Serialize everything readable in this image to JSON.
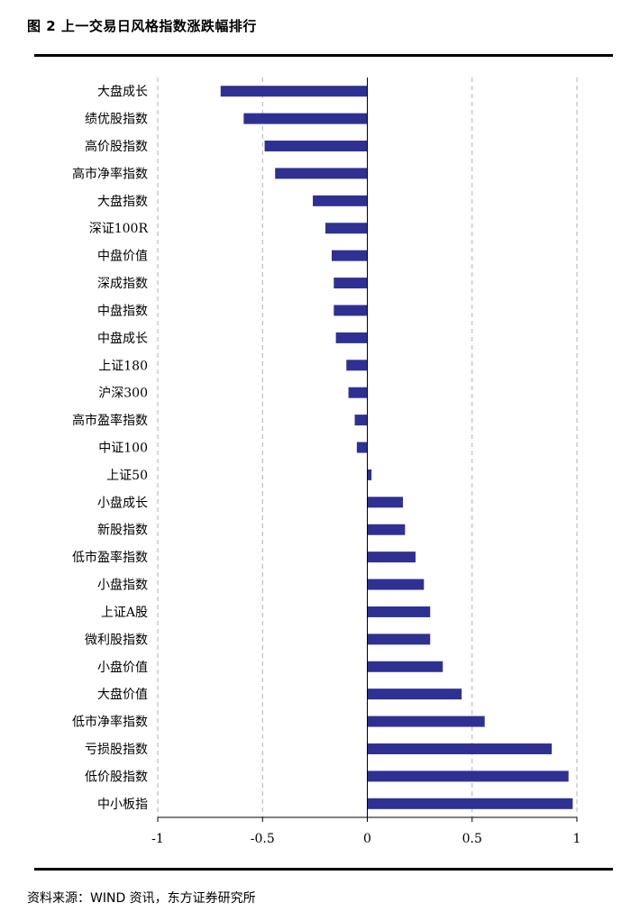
{
  "figure": {
    "title": "图 2 上一交易日风格指数涨跌幅排行",
    "source": "资料来源：WIND 资讯，东方证券研究所"
  },
  "colors": {
    "bar": "#2E3192",
    "grid": "#b0b0b0",
    "axis": "#000000"
  },
  "chart_data": {
    "type": "bar",
    "orientation": "horizontal",
    "title": "",
    "xlabel": "",
    "ylabel": "",
    "xlim": [
      -1,
      1
    ],
    "xticks": [
      -1,
      -0.5,
      0,
      0.5,
      1
    ],
    "xtick_labels": [
      "-1",
      "-0.5",
      "0",
      "0.5",
      "1"
    ],
    "grid": "vertical dashed",
    "legend": "none",
    "categories": [
      "大盘成长",
      "绩优股指数",
      "高价股指数",
      "高市净率指数",
      "大盘指数",
      "深证100R",
      "中盘价值",
      "深成指数",
      "中盘指数",
      "中盘成长",
      "上证180",
      "沪深300",
      "高市盈率指数",
      "中证100",
      "上证50",
      "小盘成长",
      "新股指数",
      "低市盈率指数",
      "小盘指数",
      "上证A股",
      "微利股指数",
      "小盘价值",
      "大盘价值",
      "低市净率指数",
      "亏损股指数",
      "低价股指数",
      "中小板指"
    ],
    "values": [
      -0.7,
      -0.59,
      -0.49,
      -0.44,
      -0.26,
      -0.2,
      -0.17,
      -0.16,
      -0.16,
      -0.15,
      -0.1,
      -0.09,
      -0.06,
      -0.05,
      0.02,
      0.17,
      0.18,
      0.23,
      0.27,
      0.3,
      0.3,
      0.36,
      0.45,
      0.56,
      0.88,
      0.96,
      0.98
    ]
  }
}
